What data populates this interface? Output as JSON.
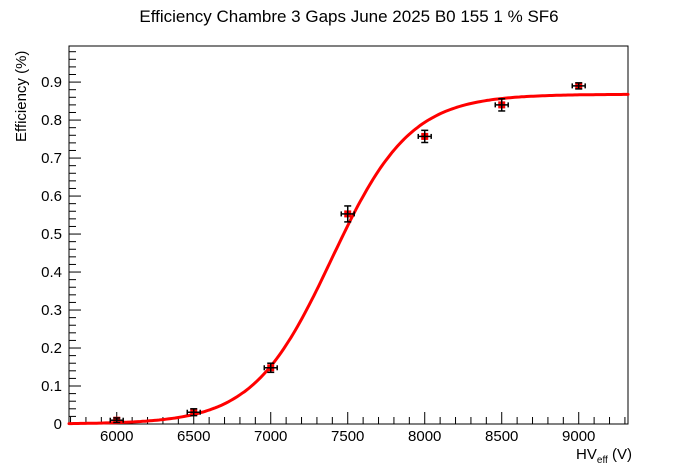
{
  "chart_data": {
    "type": "scatter",
    "title": "Efficiency Chambre 3 Gaps June 2025 B0 155 1 % SF6",
    "ylabel": "Efficiency (%)",
    "xlabel": {
      "pre": "HV",
      "sub": "eff",
      "post": " (V)"
    },
    "xlim": [
      5690,
      9320
    ],
    "ylim": [
      0,
      0.995
    ],
    "grid": false,
    "legend": null,
    "x_major_ticks": [
      {
        "v": 6000,
        "label": "6000"
      },
      {
        "v": 6500,
        "label": "6500"
      },
      {
        "v": 7000,
        "label": "7000"
      },
      {
        "v": 7500,
        "label": "7500"
      },
      {
        "v": 8000,
        "label": "8000"
      },
      {
        "v": 8500,
        "label": "8500"
      },
      {
        "v": 9000,
        "label": "9000"
      }
    ],
    "x_minor_step": 100,
    "y_major_ticks": [
      {
        "v": 0.0,
        "label": "0"
      },
      {
        "v": 0.1,
        "label": "0.1"
      },
      {
        "v": 0.2,
        "label": "0.2"
      },
      {
        "v": 0.3,
        "label": "0.3"
      },
      {
        "v": 0.4,
        "label": "0.4"
      },
      {
        "v": 0.5,
        "label": "0.5"
      },
      {
        "v": 0.6,
        "label": "0.6"
      },
      {
        "v": 0.7,
        "label": "0.7"
      },
      {
        "v": 0.8,
        "label": "0.8"
      },
      {
        "v": 0.9,
        "label": "0.9"
      }
    ],
    "y_minor_step": 0.02,
    "series": [
      {
        "name": "efficiency-points",
        "type": "scatter",
        "marker": "filled-square",
        "marker_color": "#ff0000",
        "errorbar_color": "#000000",
        "points": [
          {
            "x": 6000,
            "y": 0.01,
            "ey": 0.006,
            "ex": 42
          },
          {
            "x": 6500,
            "y": 0.031,
            "ey": 0.009,
            "ex": 42
          },
          {
            "x": 7000,
            "y": 0.148,
            "ey": 0.012,
            "ex": 42
          },
          {
            "x": 7500,
            "y": 0.553,
            "ey": 0.021,
            "ex": 42
          },
          {
            "x": 8000,
            "y": 0.757,
            "ey": 0.016,
            "ex": 42
          },
          {
            "x": 8500,
            "y": 0.84,
            "ey": 0.016,
            "ex": 42
          },
          {
            "x": 9000,
            "y": 0.89,
            "ey": 0.008,
            "ex": 42
          }
        ]
      },
      {
        "name": "sigmoid-fit",
        "type": "line",
        "color": "#ff0000",
        "fit": {
          "model": "logistic",
          "plateau": 0.868,
          "x0": 7395,
          "tau": 255
        }
      }
    ],
    "colors": {
      "curve": "#ff0000",
      "marker": "#ff0000",
      "errorbar": "#000000",
      "axis": "#000000",
      "background": "#ffffff"
    }
  }
}
